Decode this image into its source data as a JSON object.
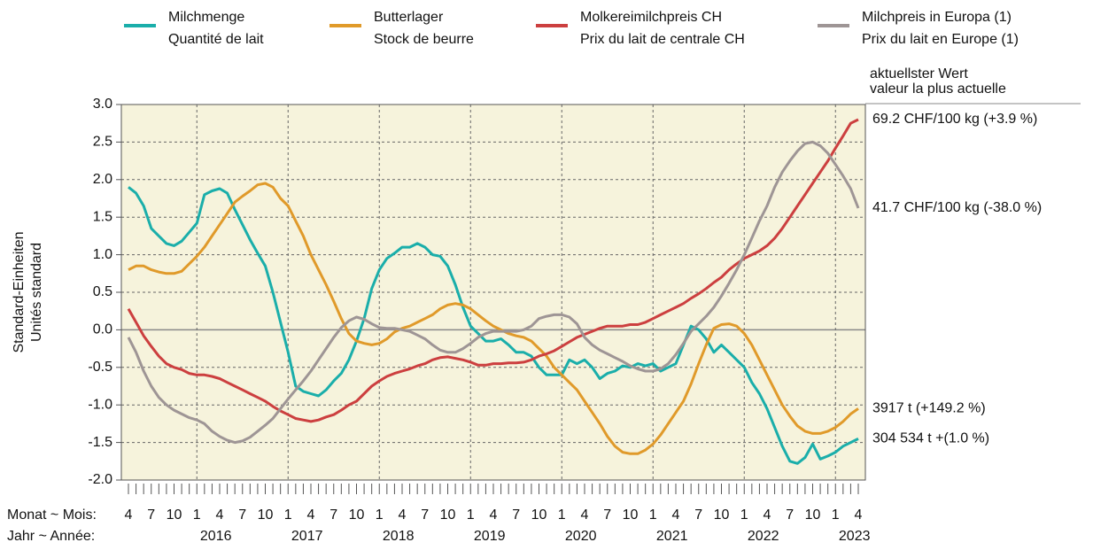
{
  "chart_data": {
    "type": "line",
    "y_label": [
      "Standard-Einheiten",
      "Unités standard"
    ],
    "x_label_month": "Monat ~ Mois:",
    "x_label_year": "Jahr ~ Année:",
    "annotation_title": [
      "aktuellster Wert",
      "valeur la plus actuelle"
    ],
    "categories": [
      "4",
      null,
      null,
      "7",
      null,
      null,
      "10",
      null,
      null,
      "1",
      null,
      null,
      "4",
      null,
      null,
      "7",
      null,
      null,
      "10",
      null,
      null,
      "1",
      null,
      null,
      "4",
      null,
      null,
      "7",
      null,
      null,
      "10",
      null,
      null,
      "1",
      null,
      null,
      "4",
      null,
      null,
      "7",
      null,
      null,
      "10",
      null,
      null,
      "1",
      null,
      null,
      "4",
      null,
      null,
      "7",
      null,
      null,
      "10",
      null,
      null,
      "1",
      null,
      null,
      "4",
      null,
      null,
      "7",
      null,
      null,
      "10",
      null,
      null,
      "1",
      null,
      null,
      "4",
      null,
      null,
      "7",
      null,
      null,
      "10",
      null,
      null,
      "1",
      null,
      null,
      "4",
      null,
      null,
      "7",
      null,
      null,
      "10",
      null,
      null,
      "1",
      null,
      null,
      "4"
    ],
    "years": [
      "2016",
      "2017",
      "2018",
      "2019",
      "2020",
      "2021",
      "2022",
      "2023"
    ],
    "ylim": [
      -2,
      3
    ],
    "yticks": [
      {
        "value": -2,
        "label": "-2.0"
      },
      -1.5,
      {
        "value": -1,
        "label": "-1.0"
      },
      -0.5,
      {
        "value": 0,
        "label": "0.0"
      },
      0.5,
      {
        "value": 1,
        "label": "1.0"
      },
      1.5,
      {
        "value": 2,
        "label": "2.0"
      },
      2.5,
      {
        "value": 3,
        "label": "3.0"
      }
    ],
    "grid": true,
    "series": [
      {
        "name": "Milchmenge",
        "subname": "Quantité de lait",
        "color": "#1aaeaa",
        "last_label": "304 534 t +(1.0 %)",
        "values": [
          1.9,
          1.82,
          1.65,
          1.35,
          1.25,
          1.15,
          1.12,
          1.18,
          1.3,
          1.42,
          1.8,
          1.85,
          1.88,
          1.82,
          1.6,
          1.4,
          1.2,
          1.02,
          0.85,
          0.5,
          0.1,
          -0.3,
          -0.75,
          -0.82,
          -0.85,
          -0.88,
          -0.8,
          -0.68,
          -0.58,
          -0.4,
          -0.15,
          0.15,
          0.55,
          0.8,
          0.95,
          1.02,
          1.1,
          1.1,
          1.15,
          1.1,
          1.0,
          0.98,
          0.85,
          0.6,
          0.3,
          0.05,
          -0.05,
          -0.15,
          -0.15,
          -0.12,
          -0.2,
          -0.3,
          -0.3,
          -0.35,
          -0.5,
          -0.6,
          -0.6,
          -0.6,
          -0.4,
          -0.45,
          -0.4,
          -0.5,
          -0.65,
          -0.58,
          -0.55,
          -0.48,
          -0.5,
          -0.45,
          -0.48,
          -0.45,
          -0.55,
          -0.5,
          -0.45,
          -0.2,
          0.05,
          0.0,
          -0.12,
          -0.3,
          -0.2,
          -0.3,
          -0.4,
          -0.5,
          -0.7,
          -0.85,
          -1.05,
          -1.3,
          -1.55,
          -1.75,
          -1.78,
          -1.7,
          -1.52,
          -1.72,
          -1.68,
          -1.63,
          -1.55,
          -1.5,
          -1.45
        ]
      },
      {
        "name": "Butterlager",
        "subname": "Stock de beurre",
        "color": "#e09a2a",
        "last_label": "3917 t (+149.2 %)",
        "values": [
          0.8,
          0.85,
          0.85,
          0.8,
          0.77,
          0.75,
          0.75,
          0.78,
          0.88,
          0.98,
          1.1,
          1.25,
          1.4,
          1.55,
          1.7,
          1.78,
          1.85,
          1.93,
          1.95,
          1.9,
          1.75,
          1.65,
          1.45,
          1.25,
          1.0,
          0.8,
          0.6,
          0.38,
          0.15,
          -0.05,
          -0.15,
          -0.18,
          -0.2,
          -0.18,
          -0.12,
          -0.03,
          0.02,
          0.05,
          0.1,
          0.15,
          0.2,
          0.28,
          0.33,
          0.35,
          0.33,
          0.28,
          0.2,
          0.12,
          0.05,
          0.0,
          -0.05,
          -0.08,
          -0.1,
          -0.15,
          -0.25,
          -0.35,
          -0.5,
          -0.6,
          -0.7,
          -0.8,
          -0.95,
          -1.1,
          -1.25,
          -1.42,
          -1.55,
          -1.63,
          -1.65,
          -1.65,
          -1.6,
          -1.52,
          -1.4,
          -1.25,
          -1.1,
          -0.95,
          -0.72,
          -0.45,
          -0.2,
          0.02,
          0.07,
          0.08,
          0.05,
          -0.05,
          -0.2,
          -0.4,
          -0.6,
          -0.8,
          -1.0,
          -1.15,
          -1.28,
          -1.35,
          -1.38,
          -1.38,
          -1.35,
          -1.3,
          -1.22,
          -1.12,
          -1.05
        ]
      },
      {
        "name": "Molkereimilchpreis CH",
        "subname": "Prix du lait de centrale CH",
        "color": "#cc3f3f",
        "last_label": "69.2 CHF/100 kg (+3.9 %)",
        "values": [
          0.28,
          0.1,
          -0.08,
          -0.22,
          -0.35,
          -0.45,
          -0.5,
          -0.53,
          -0.58,
          -0.6,
          -0.6,
          -0.62,
          -0.65,
          -0.7,
          -0.75,
          -0.8,
          -0.85,
          -0.9,
          -0.95,
          -1.02,
          -1.08,
          -1.13,
          -1.18,
          -1.2,
          -1.22,
          -1.2,
          -1.16,
          -1.13,
          -1.07,
          -1.0,
          -0.95,
          -0.85,
          -0.75,
          -0.68,
          -0.62,
          -0.58,
          -0.55,
          -0.52,
          -0.48,
          -0.45,
          -0.4,
          -0.37,
          -0.36,
          -0.38,
          -0.4,
          -0.43,
          -0.47,
          -0.47,
          -0.45,
          -0.45,
          -0.44,
          -0.44,
          -0.43,
          -0.4,
          -0.35,
          -0.32,
          -0.28,
          -0.22,
          -0.16,
          -0.1,
          -0.06,
          -0.02,
          0.02,
          0.05,
          0.05,
          0.05,
          0.07,
          0.07,
          0.1,
          0.15,
          0.2,
          0.25,
          0.3,
          0.35,
          0.42,
          0.48,
          0.55,
          0.63,
          0.7,
          0.8,
          0.88,
          0.95,
          1.0,
          1.05,
          1.12,
          1.22,
          1.35,
          1.5,
          1.65,
          1.8,
          1.95,
          2.1,
          2.25,
          2.42,
          2.58,
          2.75,
          2.8
        ]
      },
      {
        "name": "Milchpreis in Europa (1)",
        "subname": "Prix du lait en Europe (1)",
        "color": "#9e9595",
        "last_label": "41.7 CHF/100 kg (-38.0 %)",
        "values": [
          -0.1,
          -0.3,
          -0.55,
          -0.75,
          -0.9,
          -1.0,
          -1.07,
          -1.12,
          -1.17,
          -1.2,
          -1.25,
          -1.35,
          -1.42,
          -1.47,
          -1.5,
          -1.48,
          -1.43,
          -1.35,
          -1.27,
          -1.18,
          -1.05,
          -0.92,
          -0.8,
          -0.68,
          -0.55,
          -0.4,
          -0.25,
          -0.1,
          0.03,
          0.12,
          0.17,
          0.14,
          0.08,
          0.03,
          0.02,
          0.02,
          0.0,
          -0.02,
          -0.07,
          -0.12,
          -0.2,
          -0.27,
          -0.3,
          -0.3,
          -0.25,
          -0.18,
          -0.1,
          -0.05,
          -0.02,
          -0.02,
          -0.02,
          -0.02,
          0.0,
          0.05,
          0.15,
          0.18,
          0.2,
          0.2,
          0.17,
          0.08,
          -0.1,
          -0.2,
          -0.27,
          -0.32,
          -0.37,
          -0.42,
          -0.48,
          -0.52,
          -0.55,
          -0.55,
          -0.52,
          -0.45,
          -0.33,
          -0.18,
          -0.02,
          0.08,
          0.18,
          0.3,
          0.45,
          0.62,
          0.8,
          1.0,
          1.22,
          1.45,
          1.65,
          1.9,
          2.1,
          2.25,
          2.38,
          2.48,
          2.5,
          2.45,
          2.35,
          2.2,
          2.05,
          1.88,
          1.62
        ]
      }
    ]
  }
}
